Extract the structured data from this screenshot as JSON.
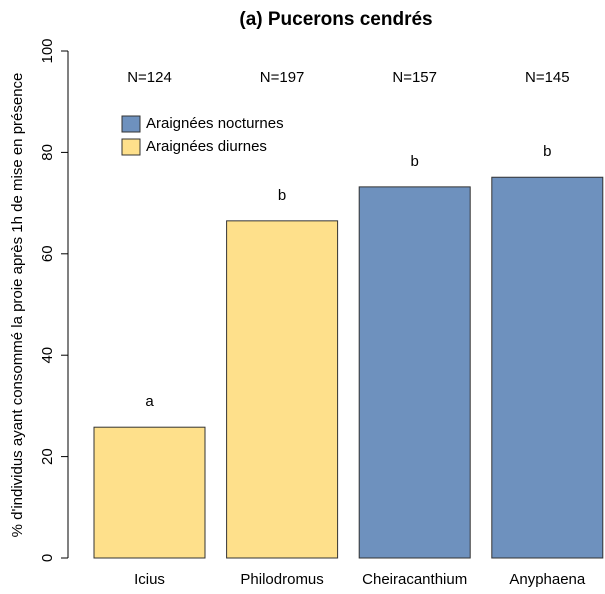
{
  "chart_data": {
    "type": "bar",
    "title": "(a)  Pucerons cendrés",
    "y_label": "% d'individus ayant consommé la proie après 1h de mise en présence",
    "categories": [
      "Icius",
      "Philodromus",
      "Cheiracanthium",
      "Anyphaena"
    ],
    "values": [
      25.8,
      66.5,
      73.2,
      75.1
    ],
    "colors": [
      "#fee08b",
      "#fee08b",
      "#6e91be",
      "#6e91be"
    ],
    "n_labels": [
      "N=124",
      "N=197",
      "N=157",
      "N=145"
    ],
    "letters": [
      "a",
      "b",
      "b",
      "b"
    ],
    "legend": [
      {
        "label": "Araignées nocturnes",
        "color": "#6e91be"
      },
      {
        "label": "Araignées diurnes",
        "color": "#fee08b"
      }
    ],
    "ylim": [
      0,
      100
    ],
    "yticks": [
      0,
      20,
      40,
      60,
      80,
      100
    ]
  }
}
